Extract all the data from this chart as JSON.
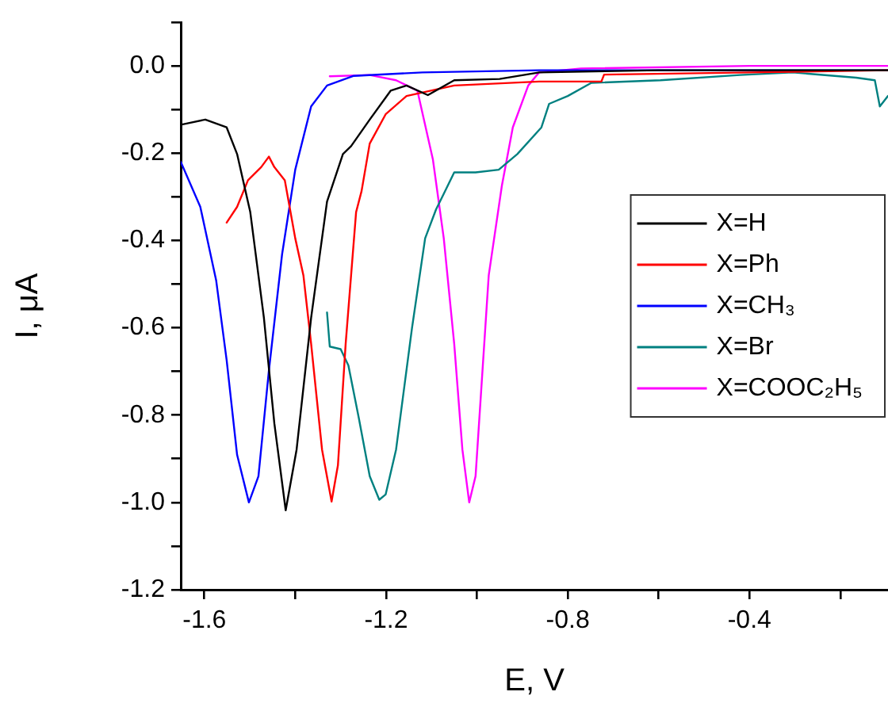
{
  "chart_data": {
    "type": "line",
    "xlabel": "E, V",
    "ylabel": "I, μA",
    "xlim": [
      -1.652,
      -0.095
    ],
    "ylim": [
      -1.2,
      0.1
    ],
    "xticks": [
      -1.6,
      {
        "value": -1.4,
        "label": null
      },
      -1.2,
      {
        "value": -1.0,
        "label": null
      },
      -0.8,
      {
        "value": -0.6,
        "label": null
      },
      -0.4,
      {
        "value": -0.2,
        "label": null
      }
    ],
    "yticks": [
      -1.2,
      {
        "value": -1.1,
        "label": null
      },
      {
        "value": -1.0,
        "label": "-1.0"
      },
      {
        "value": -0.9,
        "label": null
      },
      -0.8,
      {
        "value": -0.7,
        "label": null
      },
      -0.6,
      {
        "value": -0.5,
        "label": null
      },
      -0.4,
      {
        "value": -0.3,
        "label": null
      },
      -0.2,
      {
        "value": -0.1,
        "label": null
      },
      {
        "value": 0,
        "label": "0.0"
      },
      {
        "value": 0.1,
        "label": null
      }
    ],
    "grid": false,
    "legend": "right",
    "marker": "none",
    "line_style": "solid",
    "series": [
      {
        "name": "X=H",
        "color": "#000000",
        "x": [
          -1.652,
          -1.598,
          -1.551,
          -1.528,
          -1.499,
          -1.469,
          -1.446,
          -1.421,
          -1.397,
          -1.365,
          -1.33,
          -1.295,
          -1.277,
          -1.236,
          -1.19,
          -1.155,
          -1.108,
          -1.05,
          -0.95,
          -0.863,
          -0.6,
          -0.3,
          -0.095
        ],
        "values": [
          -0.135,
          -0.123,
          -0.141,
          -0.202,
          -0.335,
          -0.577,
          -0.819,
          -1.018,
          -0.879,
          -0.577,
          -0.311,
          -0.202,
          -0.184,
          -0.123,
          -0.057,
          -0.045,
          -0.067,
          -0.033,
          -0.03,
          -0.015,
          -0.01,
          -0.01,
          -0.01
        ]
      },
      {
        "name": "X=Ph",
        "color": "#ff0000",
        "x": [
          -1.551,
          -1.528,
          -1.504,
          -1.475,
          -1.458,
          -1.446,
          -1.423,
          -1.4,
          -1.382,
          -1.365,
          -1.341,
          -1.32,
          -1.306,
          -1.289,
          -1.266,
          -1.254,
          -1.236,
          -1.201,
          -1.155,
          -1.05,
          -0.863,
          -0.726,
          -0.72,
          -0.4,
          -0.095
        ],
        "values": [
          -0.359,
          -0.323,
          -0.262,
          -0.232,
          -0.208,
          -0.232,
          -0.262,
          -0.395,
          -0.48,
          -0.637,
          -0.879,
          -0.998,
          -0.915,
          -0.637,
          -0.335,
          -0.287,
          -0.178,
          -0.111,
          -0.069,
          -0.045,
          -0.036,
          -0.036,
          -0.02,
          -0.015,
          -0.01
        ]
      },
      {
        "name": "X=CH₃",
        "color": "#0000ff",
        "x": [
          -1.652,
          -1.609,
          -1.574,
          -1.551,
          -1.528,
          -1.502,
          -1.481,
          -1.458,
          -1.429,
          -1.4,
          -1.365,
          -1.33,
          -1.271,
          -1.12,
          -0.863,
          -0.5,
          -0.095
        ],
        "values": [
          -0.22,
          -0.323,
          -0.492,
          -0.674,
          -0.891,
          -1.0,
          -0.94,
          -0.698,
          -0.432,
          -0.238,
          -0.093,
          -0.045,
          -0.023,
          -0.015,
          -0.01,
          -0.01,
          -0.01
        ]
      },
      {
        "name": "X=Br",
        "color": "#008080",
        "x": [
          -1.33,
          -1.324,
          -1.3,
          -1.283,
          -1.26,
          -1.236,
          -1.215,
          -1.201,
          -1.178,
          -1.143,
          -1.114,
          -1.09,
          -1.073,
          -1.05,
          -1.003,
          -0.952,
          -0.911,
          -0.858,
          -0.841,
          -0.8,
          -0.748,
          -0.596,
          -0.421,
          -0.305,
          -0.165,
          -0.124,
          -0.113,
          -0.095
        ],
        "values": [
          -0.565,
          -0.643,
          -0.649,
          -0.686,
          -0.807,
          -0.94,
          -0.994,
          -0.982,
          -0.879,
          -0.601,
          -0.395,
          -0.329,
          -0.293,
          -0.244,
          -0.244,
          -0.238,
          -0.202,
          -0.141,
          -0.087,
          -0.069,
          -0.039,
          -0.033,
          -0.021,
          -0.015,
          -0.027,
          -0.033,
          -0.093,
          -0.069
        ]
      },
      {
        "name": "X=COOC₂H₅",
        "color": "#ff00ff",
        "x": [
          -1.324,
          -1.236,
          -1.178,
          -1.131,
          -1.097,
          -1.073,
          -1.05,
          -1.032,
          -1.017,
          -1.003,
          -0.974,
          -0.945,
          -0.921,
          -0.887,
          -0.863,
          -0.771,
          -0.4,
          -0.095
        ],
        "values": [
          -0.024,
          -0.021,
          -0.033,
          -0.057,
          -0.214,
          -0.395,
          -0.637,
          -0.879,
          -1.0,
          -0.94,
          -0.48,
          -0.274,
          -0.141,
          -0.045,
          -0.015,
          -0.006,
          0,
          0
        ]
      }
    ]
  }
}
